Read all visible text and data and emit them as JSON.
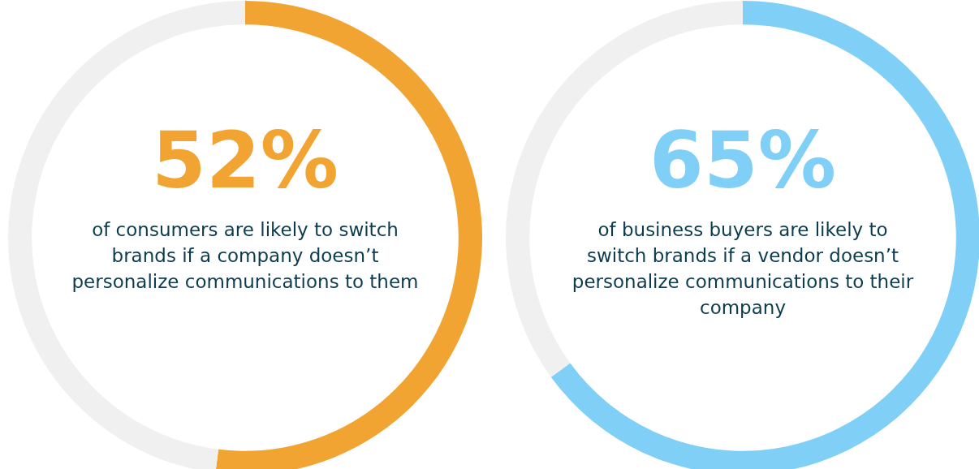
{
  "chart_data": [
    {
      "type": "donut",
      "categories": [
        null,
        null
      ],
      "values": [
        52,
        48
      ],
      "colors": [
        "#f2a433",
        "#f0f0f0"
      ],
      "value_labels": [
        "52%",
        null
      ],
      "annotations": [
        "of consumers are likely to switch brands if a company doesn’t personalize communications to them"
      ],
      "legend": false
    },
    {
      "type": "donut",
      "categories": [
        null,
        null
      ],
      "values": [
        65,
        35
      ],
      "colors": [
        "#7fcff7",
        "#f0f0f0"
      ],
      "value_labels": [
        "65%",
        null
      ],
      "annotations": [
        "of business buyers are likely to switch brands if a vendor doesn’t personalize communications to their company"
      ],
      "legend": false
    }
  ]
}
